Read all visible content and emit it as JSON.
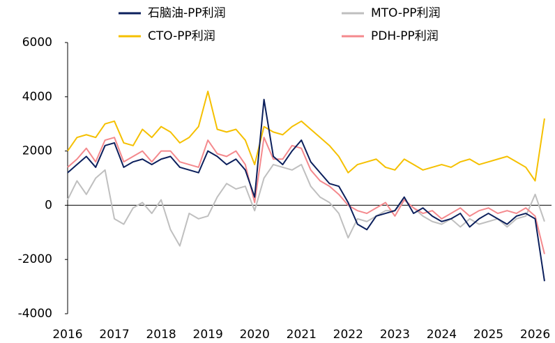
{
  "chart_data": {
    "type": "line",
    "x": [
      2016.0,
      2016.2,
      2016.4,
      2016.6,
      2016.8,
      2017.0,
      2017.2,
      2017.4,
      2017.6,
      2017.8,
      2018.0,
      2018.2,
      2018.4,
      2018.6,
      2018.8,
      2019.0,
      2019.2,
      2019.4,
      2019.6,
      2019.8,
      2020.0,
      2020.2,
      2020.4,
      2020.6,
      2020.8,
      2021.0,
      2021.2,
      2021.4,
      2021.6,
      2021.8,
      2022.0,
      2022.2,
      2022.4,
      2022.6,
      2022.8,
      2023.0,
      2023.2,
      2023.4,
      2023.6,
      2023.8,
      2024.0,
      2024.2,
      2024.4,
      2024.6,
      2024.8,
      2025.0,
      2025.2,
      2025.4,
      2025.6,
      2025.8,
      2026.0,
      2026.2
    ],
    "series": [
      {
        "name": "石脑油-PP利润",
        "color": "#0b1f5c",
        "values": [
          1200,
          1500,
          1800,
          1400,
          2200,
          2300,
          1400,
          1600,
          1700,
          1500,
          1700,
          1800,
          1400,
          1300,
          1200,
          2000,
          1800,
          1500,
          1700,
          1300,
          300,
          3900,
          1800,
          1500,
          2000,
          2400,
          1600,
          1200,
          800,
          700,
          100,
          -700,
          -900,
          -400,
          -300,
          -200,
          300,
          -300,
          -100,
          -400,
          -600,
          -500,
          -300,
          -800,
          -500,
          -300,
          -500,
          -700,
          -400,
          -300,
          -500,
          -2800
        ]
      },
      {
        "name": "MTO-PP利润",
        "color": "#bfbfbf",
        "values": [
          200,
          900,
          400,
          1000,
          1300,
          -500,
          -700,
          -100,
          100,
          -300,
          200,
          -900,
          -1500,
          -300,
          -500,
          -400,
          300,
          800,
          600,
          700,
          -200,
          1000,
          1500,
          1400,
          1300,
          1500,
          700,
          300,
          100,
          -300,
          -1200,
          -500,
          -600,
          -400,
          -200,
          -200,
          200,
          -100,
          -400,
          -600,
          -700,
          -500,
          -800,
          -500,
          -700,
          -600,
          -500,
          -800,
          -500,
          -400,
          400,
          -600
        ]
      },
      {
        "name": "CTO-PP利润",
        "color": "#f5c000",
        "values": [
          2000,
          2500,
          2600,
          2500,
          3000,
          3100,
          2300,
          2200,
          2800,
          2500,
          2900,
          2700,
          2300,
          2500,
          2900,
          4200,
          2800,
          2700,
          2800,
          2400,
          1500,
          2900,
          2700,
          2600,
          2900,
          3100,
          2800,
          2500,
          2200,
          1800,
          1200,
          1500,
          1600,
          1700,
          1400,
          1300,
          1700,
          1500,
          1300,
          1400,
          1500,
          1400,
          1600,
          1700,
          1500,
          1600,
          1700,
          1800,
          1600,
          1400,
          900,
          3200
        ]
      },
      {
        "name": "PDH-PP利润",
        "color": "#f4898d",
        "values": [
          1400,
          1700,
          2100,
          1600,
          2400,
          2500,
          1600,
          1800,
          2000,
          1600,
          2000,
          2000,
          1600,
          1500,
          1400,
          2400,
          1900,
          1800,
          2000,
          1500,
          100,
          2500,
          1700,
          1700,
          2200,
          2100,
          1300,
          900,
          700,
          400,
          0,
          -200,
          -300,
          -100,
          100,
          -400,
          200,
          -100,
          -300,
          -200,
          -500,
          -300,
          -100,
          -400,
          -200,
          -100,
          -300,
          -200,
          -300,
          -100,
          -400,
          -1800
        ]
      }
    ],
    "xlim": [
      2016,
      2026.35
    ],
    "xticks": [
      2016,
      2017,
      2018,
      2019,
      2020,
      2021,
      2022,
      2023,
      2024,
      2025,
      2026
    ],
    "ylim": [
      -4000,
      6000
    ],
    "yticks": [
      -4000,
      -2000,
      0,
      2000,
      4000,
      6000
    ]
  }
}
